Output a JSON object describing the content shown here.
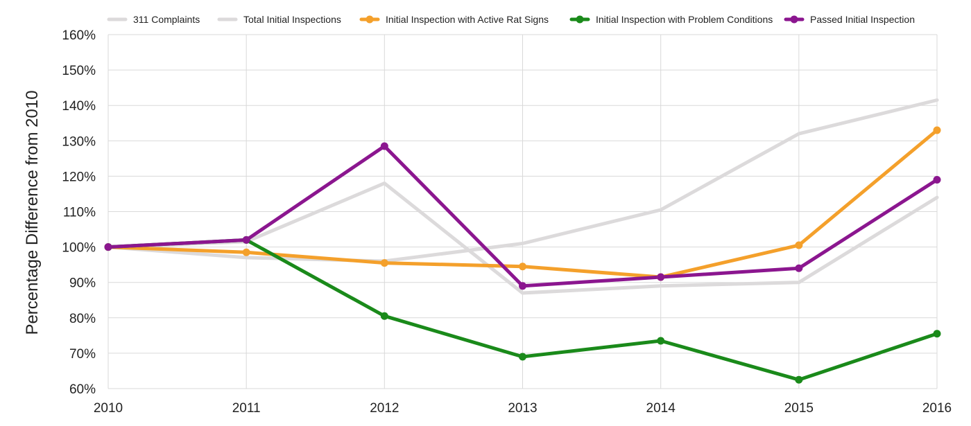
{
  "chart_data": {
    "type": "line",
    "title": "",
    "xlabel": "",
    "ylabel": "Percentage Difference from 2010",
    "x": [
      "2010",
      "2011",
      "2012",
      "2013",
      "2014",
      "2015",
      "2016"
    ],
    "ylim": [
      60,
      160
    ],
    "y_ticks": [
      "60%",
      "70%",
      "80%",
      "90%",
      "100%",
      "110%",
      "120%",
      "130%",
      "140%",
      "150%",
      "160%"
    ],
    "grid": true,
    "legend_position": "top",
    "series": [
      {
        "name": "311 Complaints",
        "color": "#dcdadb",
        "markers": false,
        "values": [
          100,
          97,
          96,
          101,
          110.5,
          132,
          141.5
        ]
      },
      {
        "name": "Total Initial Inspections",
        "color": "#dcdadb",
        "markers": false,
        "values": [
          100,
          101.5,
          118,
          87,
          89,
          90,
          114
        ]
      },
      {
        "name": "Initial Inspection with Active Rat Signs",
        "color": "#f4a02b",
        "markers": true,
        "values": [
          100,
          98.5,
          95.5,
          94.5,
          91.5,
          100.5,
          133
        ]
      },
      {
        "name": "Initial Inspection with Problem Conditions",
        "color": "#1a8a1a",
        "markers": true,
        "values": [
          100,
          102,
          80.5,
          69,
          73.5,
          62.5,
          75.5
        ]
      },
      {
        "name": "Passed Initial Inspection",
        "color": "#8b168f",
        "markers": true,
        "values": [
          100,
          102,
          128.5,
          89,
          91.5,
          94,
          119
        ]
      }
    ]
  }
}
